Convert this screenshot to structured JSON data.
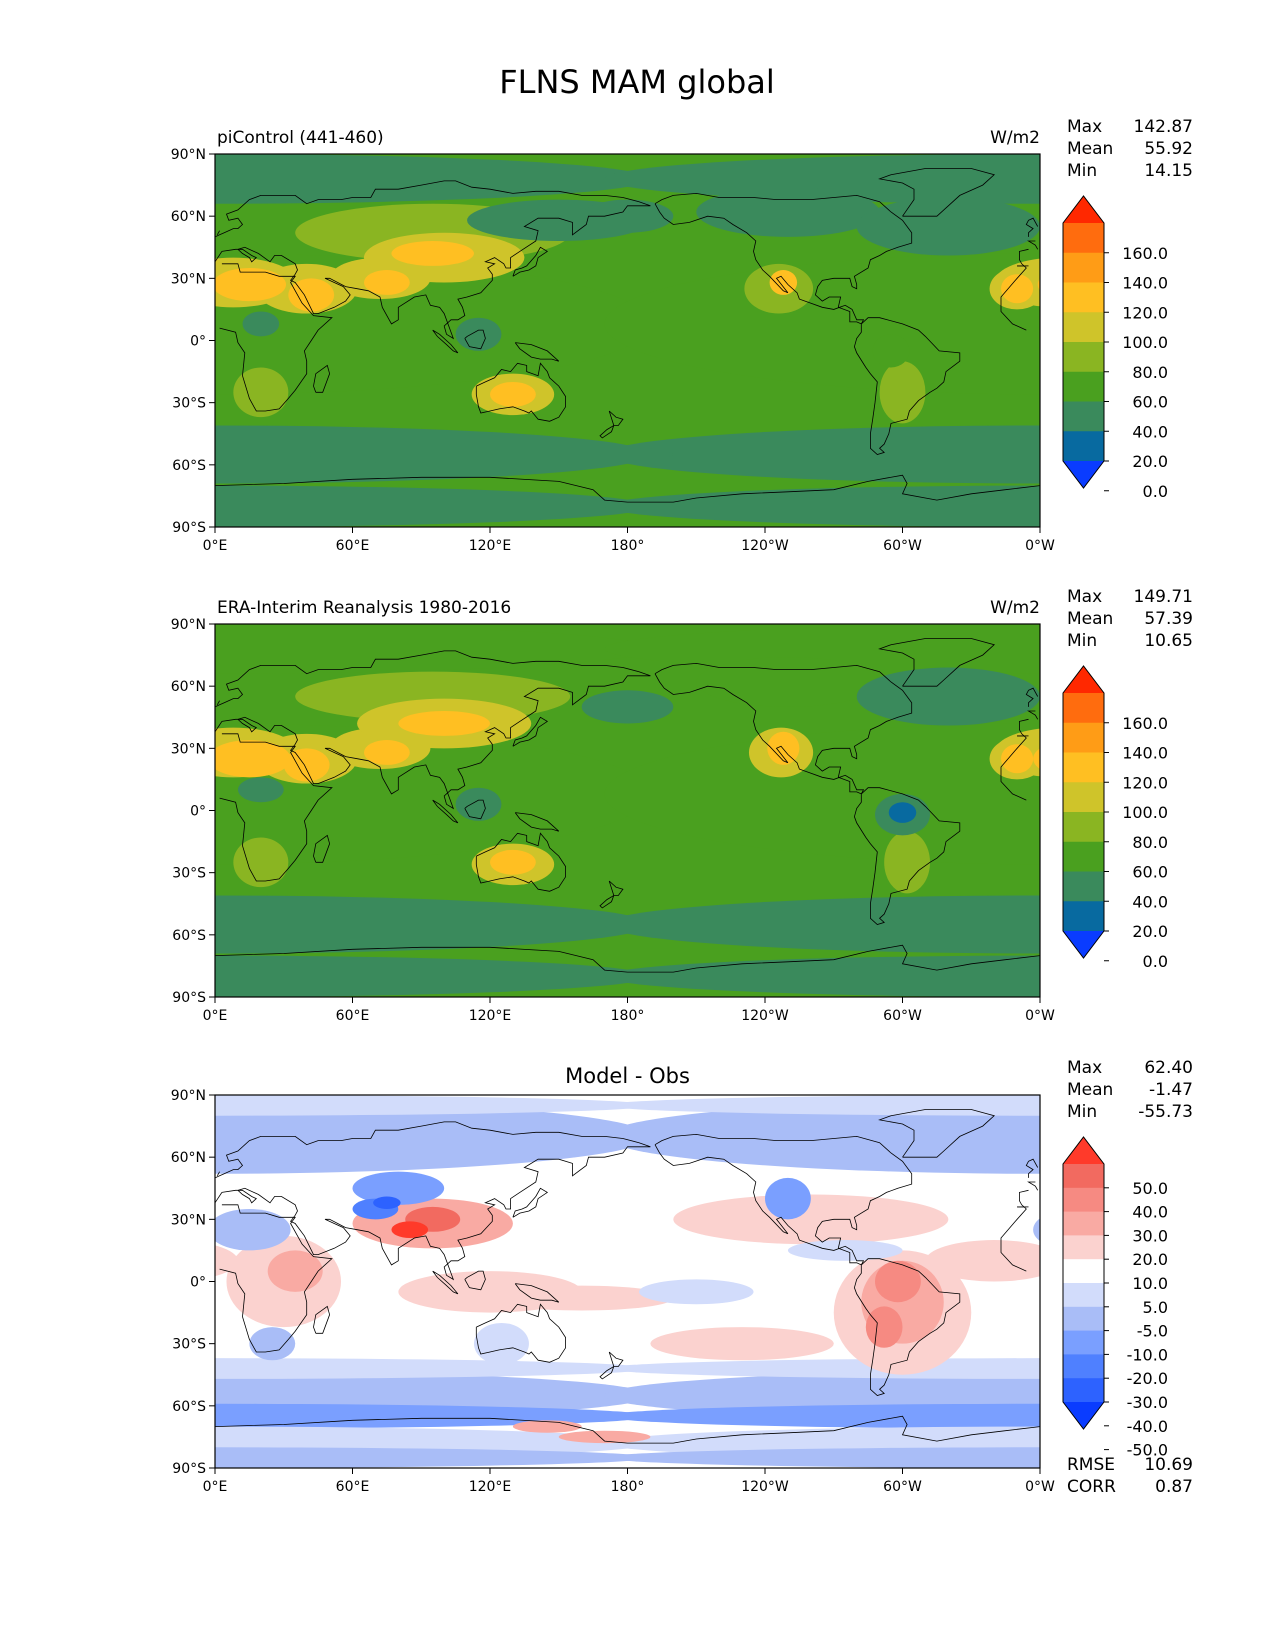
{
  "figure_title": "FLNS MAM global",
  "colors": {
    "levels_abs": [
      "#0a3cff",
      "#086aa0",
      "#3a8a5c",
      "#4aa01f",
      "#8ab522",
      "#cfc42a",
      "#ffbf22",
      "#ff9c16",
      "#ff6c0e",
      "#ff2800"
    ],
    "levels_diff": [
      "#0a3cff",
      "#2d62ff",
      "#4f80ff",
      "#7a9fff",
      "#a9bdf7",
      "#d2dcfb",
      "#ffffff",
      "#fbd2cf",
      "#f9aaa3",
      "#f68a82",
      "#f26a60",
      "#ff3a2a"
    ],
    "coastline": "#000000"
  },
  "panels": [
    {
      "id": "model",
      "left_title": "piControl (441-460)",
      "center_title": "",
      "units": "W/m2",
      "stats": [
        {
          "label": "Max",
          "value": "142.87"
        },
        {
          "label": "Mean",
          "value": "55.92"
        },
        {
          "label": "Min",
          "value": "14.15"
        }
      ],
      "extra_stats": [],
      "colorbar": {
        "scheme": "abs",
        "labels": [
          "160.0",
          "140.0",
          "120.0",
          "100.0",
          "80.0",
          "60.0",
          "40.0",
          "20.0",
          "0.0"
        ]
      }
    },
    {
      "id": "obs",
      "left_title": "ERA-Interim Reanalysis 1980-2016",
      "center_title": "",
      "units": "W/m2",
      "stats": [
        {
          "label": "Max",
          "value": "149.71"
        },
        {
          "label": "Mean",
          "value": "57.39"
        },
        {
          "label": "Min",
          "value": "10.65"
        }
      ],
      "extra_stats": [],
      "colorbar": {
        "scheme": "abs",
        "labels": [
          "160.0",
          "140.0",
          "120.0",
          "100.0",
          "80.0",
          "60.0",
          "40.0",
          "20.0",
          "0.0"
        ]
      }
    },
    {
      "id": "diff",
      "left_title": "",
      "center_title": "Model - Obs",
      "units": "",
      "stats": [
        {
          "label": "Max",
          "value": "62.40"
        },
        {
          "label": "Mean",
          "value": "-1.47"
        },
        {
          "label": "Min",
          "value": "-55.73"
        }
      ],
      "extra_stats": [
        {
          "label": "RMSE",
          "value": "10.69"
        },
        {
          "label": "CORR",
          "value": "0.87"
        }
      ],
      "colorbar": {
        "scheme": "diff",
        "labels": [
          "50.0",
          "40.0",
          "30.0",
          "20.0",
          "10.0",
          "5.0",
          "-5.0",
          "-10.0",
          "-20.0",
          "-30.0",
          "-40.0",
          "-50.0"
        ]
      }
    }
  ],
  "axes": {
    "lat_ticks": [
      "90°N",
      "60°N",
      "30°N",
      "0°",
      "30°S",
      "60°S",
      "90°S"
    ],
    "lon_ticks": [
      "0°E",
      "60°E",
      "120°E",
      "180°",
      "120°W",
      "60°W",
      "0°W"
    ]
  }
}
